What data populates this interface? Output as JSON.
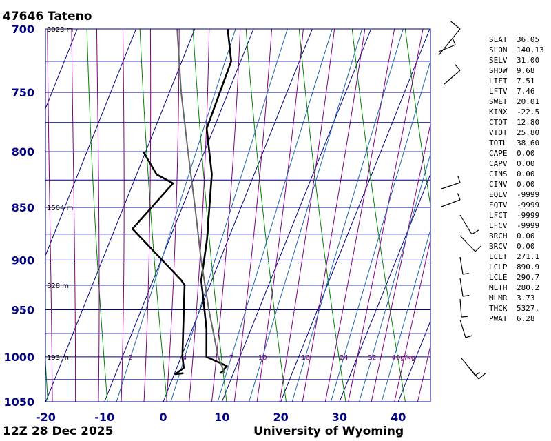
{
  "header": {
    "title": "47646  Tateno"
  },
  "footer": {
    "left": "12Z 28 Dec 2025",
    "right": "University of Wyoming"
  },
  "chart_data": {
    "type": "line",
    "title": "47646  Tateno",
    "pressure_levels": [
      700,
      750,
      800,
      850,
      900,
      950,
      1000,
      1050
    ],
    "temperature_ticks": [
      -20,
      -10,
      0,
      10,
      20,
      30,
      40
    ],
    "xlim": [
      -20,
      45
    ],
    "ylim": [
      1050,
      700
    ],
    "height_labels": [
      {
        "p": 700,
        "text": "3023 m"
      },
      {
        "p": 850,
        "text": "1504 m"
      },
      {
        "p": 925,
        "text": "828 m"
      },
      {
        "p": 1000,
        "text": "193 m"
      }
    ],
    "mixing_ratio_labels": [
      "2",
      "4",
      "7",
      "10",
      "16",
      "24",
      "32",
      "40g/kg"
    ],
    "series": [
      {
        "type": "temperature",
        "color": "#000000",
        "points": [
          [
            1018,
            7.8
          ],
          [
            1010,
            8.4
          ],
          [
            1000,
            4.3
          ],
          [
            970,
            2.4
          ],
          [
            920,
            -1.8
          ],
          [
            880,
            -3.6
          ],
          [
            820,
            -7.2
          ],
          [
            780,
            -11.2
          ],
          [
            725,
            -11.6
          ],
          [
            700,
            -14.4
          ]
        ]
      },
      {
        "type": "dewpoint",
        "color": "#000000",
        "points": [
          [
            1018,
            1.5
          ],
          [
            1019,
            0.2
          ],
          [
            1012,
            1.2
          ],
          [
            1000,
            0.2
          ],
          [
            925,
            -4.3
          ],
          [
            920,
            -5.2
          ],
          [
            870,
            -17.0
          ],
          [
            828,
            -13.2
          ],
          [
            820,
            -16.6
          ],
          [
            800,
            -20.4
          ]
        ]
      },
      {
        "type": "parcel",
        "color": "#666666",
        "points": [
          [
            1018,
            8.5
          ],
          [
            1000,
            6.3
          ],
          [
            950,
            1.5
          ],
          [
            900,
            -3.2
          ],
          [
            850,
            -7.8
          ],
          [
            800,
            -12.8
          ],
          [
            750,
            -18.0
          ],
          [
            700,
            -23.0
          ]
        ]
      }
    ]
  },
  "indices": [
    {
      "k": "SLAT",
      "v": "36.05"
    },
    {
      "k": "SLON",
      "v": "140.13"
    },
    {
      "k": "SELV",
      "v": "31.00"
    },
    {
      "k": "SHOW",
      "v": "9.68"
    },
    {
      "k": "LIFT",
      "v": "7.51"
    },
    {
      "k": "LFTV",
      "v": "7.46"
    },
    {
      "k": "SWET",
      "v": "20.01"
    },
    {
      "k": "KINX",
      "v": "-22.5"
    },
    {
      "k": "CTOT",
      "v": "12.80"
    },
    {
      "k": "VTOT",
      "v": "25.80"
    },
    {
      "k": "TOTL",
      "v": "38.60"
    },
    {
      "k": "CAPE",
      "v": "0.00"
    },
    {
      "k": "CAPV",
      "v": "0.00"
    },
    {
      "k": "CINS",
      "v": "0.00"
    },
    {
      "k": "CINV",
      "v": "0.00"
    },
    {
      "k": "EQLV",
      "v": "-9999"
    },
    {
      "k": "EQTV",
      "v": "-9999"
    },
    {
      "k": "LFCT",
      "v": "-9999"
    },
    {
      "k": "LFCV",
      "v": "-9999"
    },
    {
      "k": "BRCH",
      "v": "0.00"
    },
    {
      "k": "BRCV",
      "v": "0.00"
    },
    {
      "k": "LCLT",
      "v": "271.1"
    },
    {
      "k": "LCLP",
      "v": "890.9"
    },
    {
      "k": "LCLE",
      "v": "290.7"
    },
    {
      "k": "MLTH",
      "v": "280.2"
    },
    {
      "k": "MLMR",
      "v": "3.73"
    },
    {
      "k": "THCK",
      "v": "5327."
    },
    {
      "k": "PWAT",
      "v": "6.28"
    }
  ],
  "colors": {
    "isobar": "#000080",
    "isotherm": "#000080",
    "dry_adiabat": "#008000",
    "moist_adiabat": "#800080",
    "mixing_ratio": "#2266aa",
    "label": "#000080"
  }
}
